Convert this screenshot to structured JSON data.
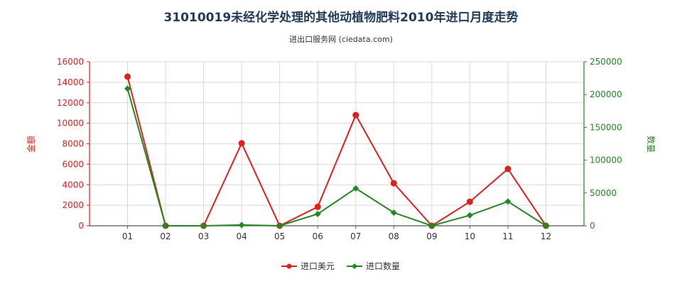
{
  "chart_data": {
    "type": "line",
    "title": "31010019未经化学处理的其他动植物肥料2010年进口月度走势",
    "subtitle": "进出口服务网 (ciedata.com)",
    "categories": [
      "01",
      "02",
      "03",
      "04",
      "05",
      "06",
      "07",
      "08",
      "09",
      "10",
      "11",
      "12"
    ],
    "y_left": {
      "label": "金额",
      "ylim": [
        0,
        16000
      ],
      "ticks": [
        "0",
        "2000",
        "4000",
        "6000",
        "8000",
        "10000",
        "12000",
        "14000",
        "16000"
      ],
      "color": "#e0201c"
    },
    "y_right": {
      "label": "数量",
      "ylim": [
        0,
        250000
      ],
      "ticks": [
        "0",
        "50000",
        "100000",
        "150000",
        "200000",
        "250000"
      ],
      "color": "#1f8a1f"
    },
    "series": [
      {
        "name": "进口美元",
        "axis": "left",
        "color": "#e0201c",
        "values": [
          14550,
          0,
          0,
          8050,
          0,
          1850,
          10800,
          4150,
          0,
          2350,
          5550,
          0
        ]
      },
      {
        "name": "进口数量",
        "axis": "right",
        "color": "#1f8a1f",
        "values": [
          209000,
          0,
          0,
          1200,
          0,
          18000,
          57000,
          20000,
          0,
          16000,
          37000,
          0
        ]
      }
    ],
    "grid": true,
    "legend_position": "bottom-center"
  }
}
